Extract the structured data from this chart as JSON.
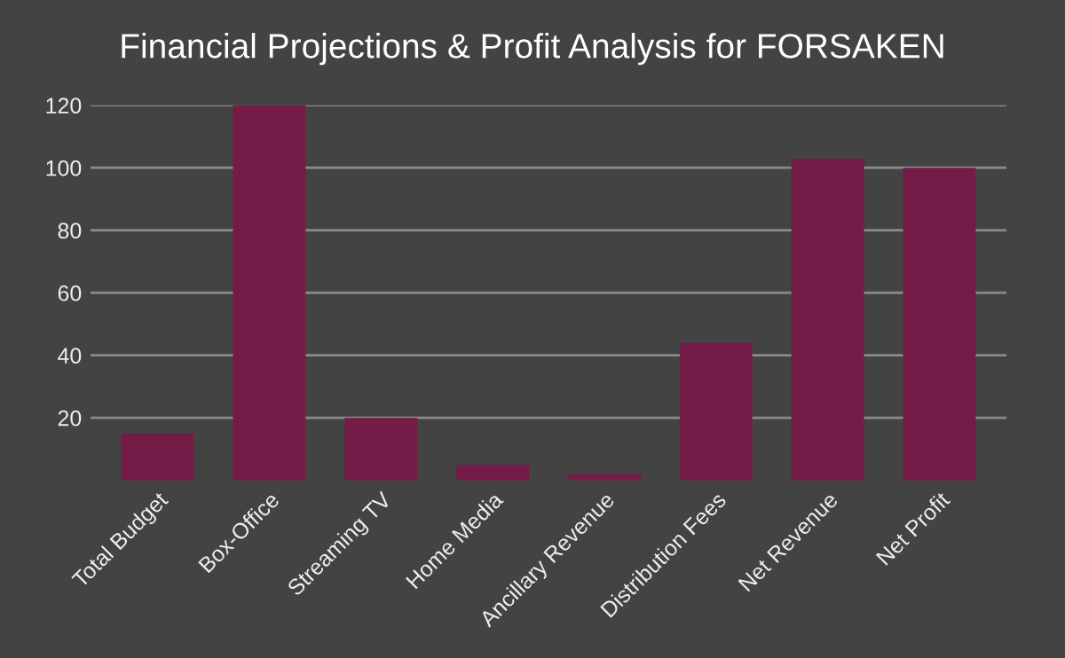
{
  "chart_data": {
    "type": "bar",
    "title": "Financial Projections & Profit Analysis for FORSAKEN",
    "categories": [
      "Total Budget",
      "Box-Office",
      "Streaming TV",
      "Home Media",
      "Ancillary Revenue",
      "Distribution Fees",
      "Net Revenue",
      "Net Profit"
    ],
    "values": [
      15,
      120,
      20,
      5,
      2,
      44,
      103,
      100
    ],
    "color": "#741b47",
    "ylim": [
      0,
      120
    ],
    "yticks": [
      20,
      40,
      60,
      80,
      100,
      120
    ],
    "grid": "y",
    "legend": false
  }
}
